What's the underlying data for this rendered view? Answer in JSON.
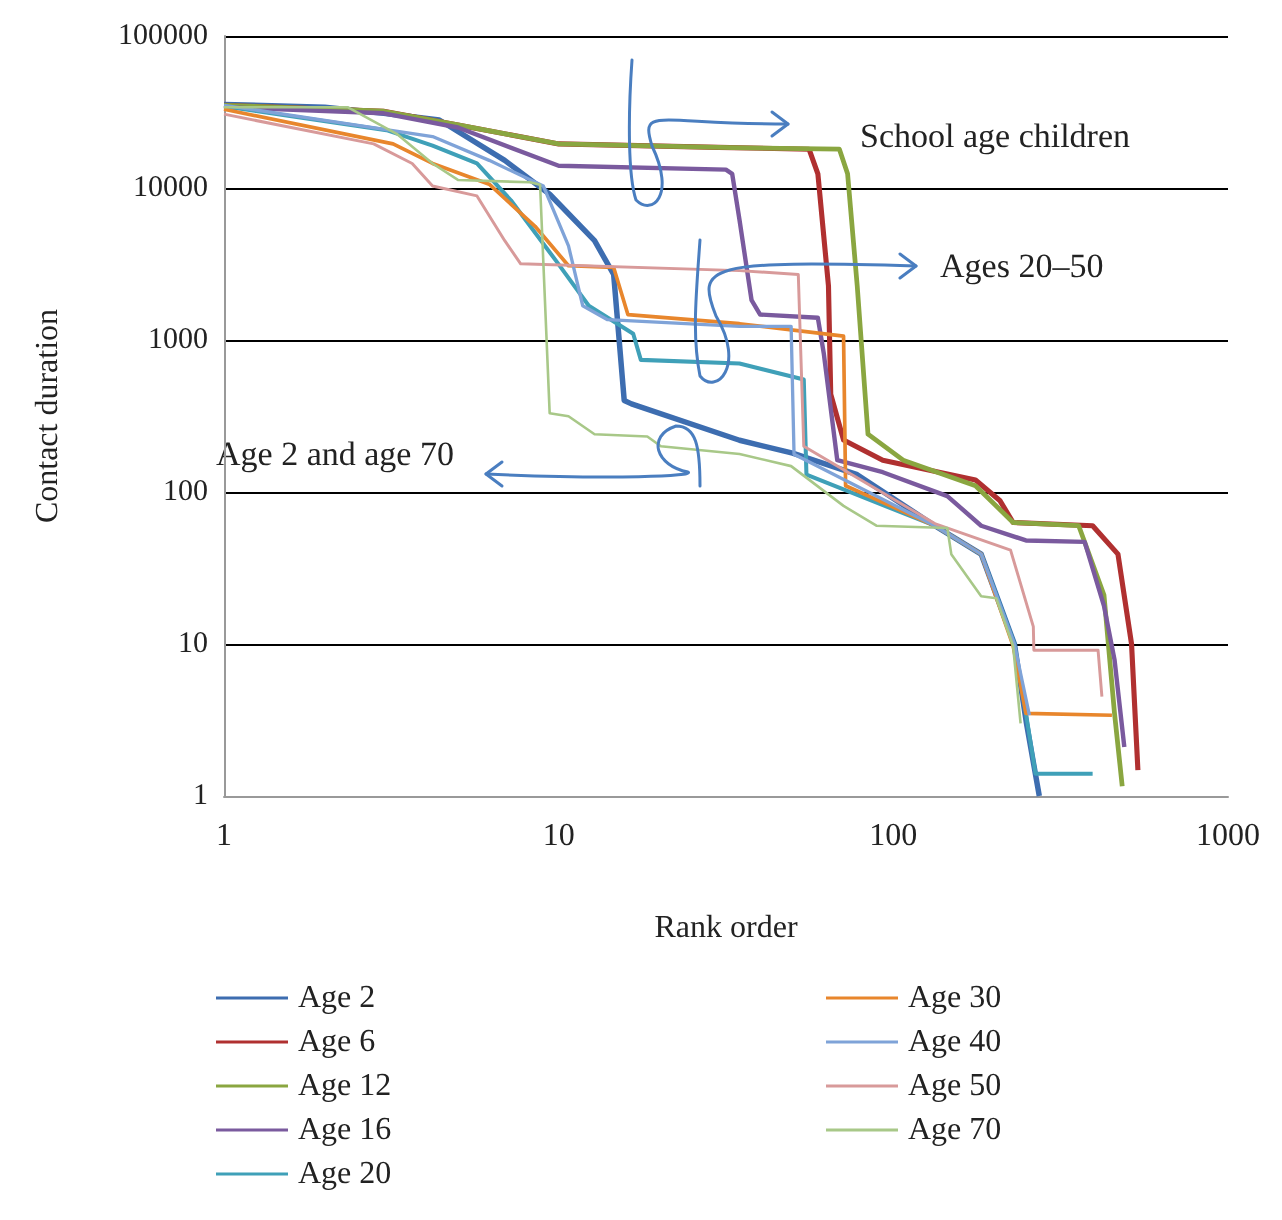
{
  "chart_data": {
    "type": "line",
    "xlabel": "Rank order",
    "ylabel": "Contact duration",
    "log": "xy",
    "xlim": [
      1,
      1000
    ],
    "ylim": [
      1,
      100000
    ],
    "xticks": [
      1,
      10,
      100,
      1000
    ],
    "yticks": [
      1,
      10,
      100,
      1000,
      10000,
      100000
    ],
    "grid": "y",
    "legend": "bottom",
    "annotations": [
      "School age children",
      "Ages 20–50",
      "Age 2 and age 70"
    ],
    "series": [
      {
        "name": "Age 2",
        "color": "#3d6db0",
        "x": [
          1,
          2,
          3,
          4.4,
          6.9,
          9.4,
          12.8,
          14.6,
          15.7,
          16.5,
          34.7,
          50,
          78,
          133,
          183,
          230,
          250,
          273
        ],
        "values": [
          35500,
          34000,
          31000,
          28000,
          15200,
          9100,
          4500,
          2700,
          400,
          380,
          219,
          180,
          130,
          60,
          39,
          10,
          3,
          1
        ]
      },
      {
        "name": "Age 6",
        "color": "#b03030",
        "x": [
          1,
          3,
          5,
          10,
          30,
          56,
          59.5,
          64,
          65,
          71,
          93,
          176,
          208,
          228,
          394,
          469,
          515,
          538
        ],
        "values": [
          35000,
          32000,
          26000,
          19500,
          18500,
          18000,
          12400,
          2270,
          440,
          220,
          162,
          120,
          88,
          63,
          60,
          39,
          10,
          1.48
        ]
      },
      {
        "name": "Age 12",
        "color": "#8aa640",
        "x": [
          1,
          3,
          5,
          10,
          30,
          69,
          73,
          78,
          84,
          107,
          176,
          228,
          358,
          426,
          458,
          483
        ],
        "values": [
          35000,
          32000,
          26000,
          19500,
          18500,
          18000,
          12400,
          2270,
          240,
          162,
          110,
          63,
          60,
          21,
          3.5,
          1.16
        ]
      },
      {
        "name": "Age 16",
        "color": "#7a5a9e",
        "x": [
          1,
          3,
          5,
          10,
          31.6,
          33,
          34.7,
          37.7,
          40,
          59.5,
          62,
          68,
          93,
          145,
          183,
          249,
          373,
          426,
          458,
          490
        ],
        "values": [
          34000,
          31000,
          25000,
          14000,
          13200,
          12400,
          6170,
          1830,
          1470,
          1400,
          810,
          162,
          135,
          94,
          60,
          48,
          47,
          17.8,
          7.9,
          2.1
        ]
      },
      {
        "name": "Age 20",
        "color": "#3fa0b8",
        "x": [
          1,
          3.06,
          4.2,
          5.7,
          7.2,
          9.8,
          12.3,
          16.7,
          17.6,
          34.7,
          54,
          55,
          133,
          183,
          230,
          249,
          266,
          394
        ],
        "values": [
          34500,
          24000,
          19000,
          14500,
          8300,
          3340,
          1680,
          1100,
          740,
          700,
          550,
          130,
          60,
          39,
          10,
          3.5,
          1.4,
          1.4
        ]
      },
      {
        "name": "Age 30",
        "color": "#e8862c",
        "x": [
          1,
          3.2,
          4.2,
          6.2,
          8.5,
          10.7,
          14.6,
          16.1,
          34.7,
          71,
          72,
          133,
          183,
          228,
          249,
          450
        ],
        "values": [
          33000,
          19500,
          14500,
          10600,
          5600,
          3080,
          3000,
          1470,
          1280,
          1060,
          110,
          60,
          39,
          9.7,
          3.5,
          3.4
        ]
      },
      {
        "name": "Age 40",
        "color": "#7fa3d8",
        "x": [
          1,
          4.2,
          6.2,
          9,
          10.7,
          11.8,
          14,
          34.7,
          49.5,
          50.5,
          133,
          183,
          230,
          255
        ],
        "values": [
          35000,
          21800,
          15200,
          10300,
          4160,
          1680,
          1360,
          1230,
          1230,
          177,
          60,
          39,
          10,
          3.4
        ]
      },
      {
        "name": "Age 50",
        "color": "#d89a9a",
        "x": [
          1,
          2.8,
          3.65,
          4.2,
          5.7,
          6.9,
          7.7,
          34.7,
          52,
          54,
          133,
          224,
          262,
          263,
          409,
          420
        ],
        "values": [
          30600,
          19500,
          14500,
          10300,
          8870,
          4500,
          3170,
          2860,
          2700,
          200,
          62,
          41.5,
          13,
          9.1,
          9.1,
          4.5
        ]
      },
      {
        "name": "Age 70",
        "color": "#a8c888",
        "x": [
          1,
          2.34,
          3.3,
          4.2,
          5,
          8.2,
          8.8,
          9.4,
          10.7,
          12.8,
          18.4,
          20.2,
          34.7,
          49.5,
          71,
          89,
          145,
          149,
          183,
          203,
          228,
          240
        ],
        "values": [
          34000,
          34000,
          22500,
          14500,
          11300,
          10900,
          10500,
          330,
          315,
          240,
          232,
          200,
          178,
          148,
          81,
          60,
          58,
          39,
          20.6,
          20,
          9.7,
          3
        ]
      }
    ]
  }
}
